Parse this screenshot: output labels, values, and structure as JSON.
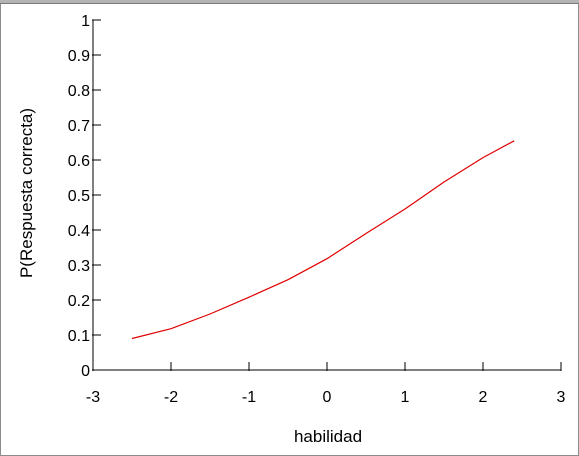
{
  "chart_data": {
    "type": "line",
    "title": "",
    "xlabel": "habilidad",
    "ylabel": "P(Respuesta correcta)",
    "xlim": [
      -3,
      3
    ],
    "ylim": [
      0,
      1
    ],
    "x_ticks": [
      "-3",
      "-2",
      "-1",
      "0",
      "1",
      "2",
      "3"
    ],
    "y_ticks": [
      "0",
      "0.1",
      "0.2",
      "0.3",
      "0.4",
      "0.5",
      "0.6",
      "0.7",
      "0.8",
      "0.9",
      "1"
    ],
    "grid": false,
    "series": [
      {
        "color": "#e00000",
        "x": [
          -2.5,
          -2.0,
          -1.5,
          -1.0,
          -0.5,
          0.0,
          0.5,
          1.0,
          1.5,
          2.0,
          2.4
        ],
        "y": [
          0.09,
          0.118,
          0.16,
          0.208,
          0.258,
          0.318,
          0.39,
          0.46,
          0.537,
          0.607,
          0.655
        ]
      }
    ]
  }
}
